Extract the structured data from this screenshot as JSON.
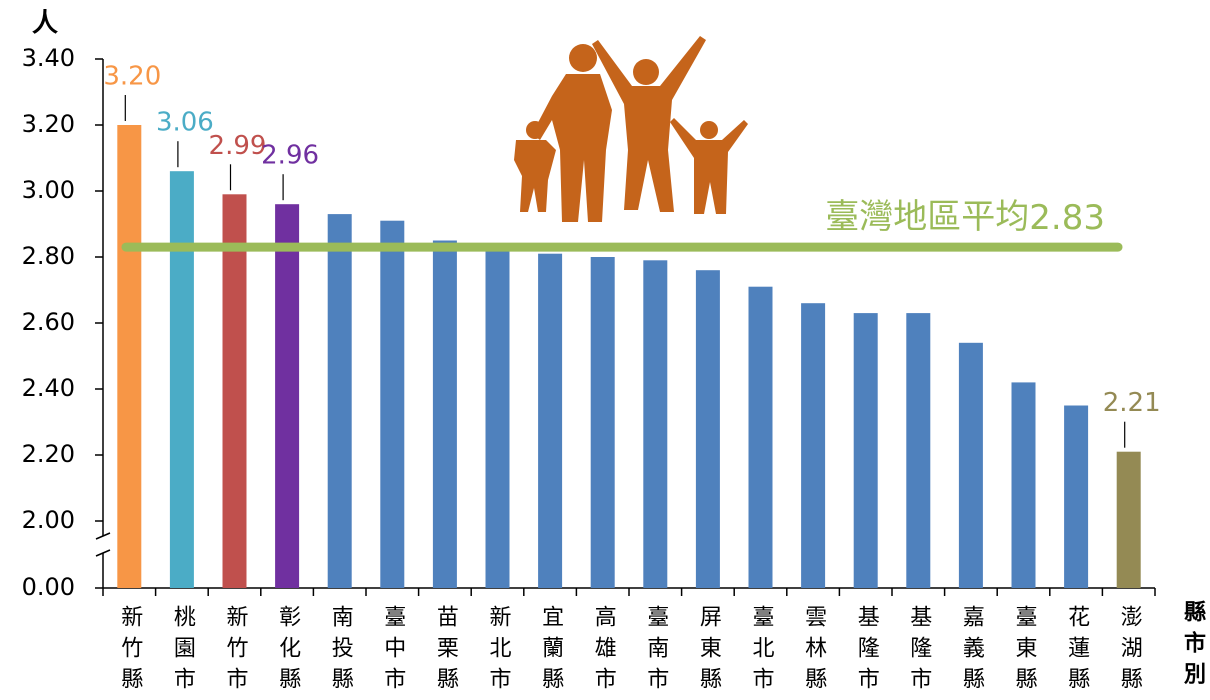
{
  "chart_data": {
    "type": "bar",
    "y_label": "人",
    "x_label": "縣市別",
    "categories": [
      "新竹縣",
      "桃園市",
      "新竹市",
      "彰化縣",
      "南投縣",
      "臺中市",
      "苗栗縣",
      "新北市",
      "宜蘭縣",
      "高雄市",
      "臺南市",
      "屏東縣",
      "臺北市",
      "雲林縣",
      "基隆市",
      "基隆市",
      "嘉義縣",
      "臺東縣",
      "花蓮縣",
      "澎湖縣"
    ],
    "values": [
      3.2,
      3.06,
      2.99,
      2.96,
      2.93,
      2.91,
      2.85,
      2.82,
      2.81,
      2.8,
      2.79,
      2.76,
      2.71,
      2.66,
      2.63,
      2.63,
      2.54,
      2.42,
      2.35,
      2.21
    ],
    "value_labels": [
      "3.20",
      "3.06",
      "2.99",
      "2.96",
      null,
      null,
      null,
      null,
      null,
      null,
      null,
      null,
      null,
      null,
      null,
      null,
      null,
      null,
      null,
      "2.21"
    ],
    "colors": [
      "#f79646",
      "#4bacc6",
      "#c0504d",
      "#7030a0",
      "#4f81bd",
      "#4f81bd",
      "#4f81bd",
      "#4f81bd",
      "#4f81bd",
      "#4f81bd",
      "#4f81bd",
      "#4f81bd",
      "#4f81bd",
      "#4f81bd",
      "#4f81bd",
      "#4f81bd",
      "#4f81bd",
      "#4f81bd",
      "#4f81bd",
      "#948a54"
    ],
    "ylim": [
      0,
      3.4
    ],
    "axis_break": [
      0,
      2.0
    ],
    "yticks": [
      {
        "value": 0,
        "label": "0.00"
      },
      {
        "value": 2.0,
        "label": "2.00"
      },
      {
        "value": 2.2,
        "label": "2.20"
      },
      {
        "value": 2.4,
        "label": "2.40"
      },
      {
        "value": 2.6,
        "label": "2.60"
      },
      {
        "value": 2.8,
        "label": "2.80"
      },
      {
        "value": 3.0,
        "label": "3.00"
      },
      {
        "value": 3.2,
        "label": "3.20"
      },
      {
        "value": 3.4,
        "label": "3.40"
      }
    ],
    "average": {
      "label": "臺灣地區平均",
      "value": 2.83,
      "value_label": "2.83",
      "color": "#9bbb59"
    },
    "grid": false
  }
}
